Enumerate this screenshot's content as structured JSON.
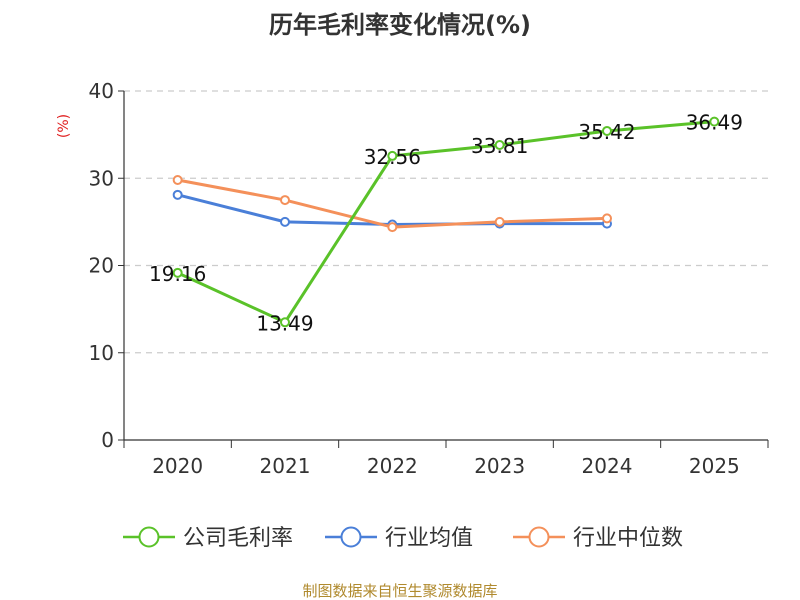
{
  "chart_data": {
    "type": "line",
    "title": "历年毛利率变化情况(%)",
    "unit_label": "(%)",
    "categories": [
      "2020",
      "2021",
      "2022",
      "2023",
      "2024",
      "2025"
    ],
    "y_ticks": [
      "0",
      "10",
      "20",
      "30",
      "40"
    ],
    "ylim": [
      0,
      40
    ],
    "grid": true,
    "legend_position": "bottom",
    "series": [
      {
        "name": "公司毛利率",
        "color": "#5ac229",
        "values": [
          19.16,
          13.49,
          32.56,
          33.81,
          35.42,
          36.49
        ],
        "labels": [
          "19.16",
          "13.49",
          "32.56",
          "33.81",
          "35.42",
          "36.49"
        ]
      },
      {
        "name": "行业均值",
        "color": "#4a7fd8",
        "values": [
          28.1,
          25.0,
          24.7,
          24.8,
          24.8,
          null
        ]
      },
      {
        "name": "行业中位数",
        "color": "#f4905a",
        "values": [
          29.8,
          27.5,
          24.4,
          25.0,
          25.4,
          null
        ]
      }
    ],
    "source": "制图数据来自恒生聚源数据库"
  }
}
